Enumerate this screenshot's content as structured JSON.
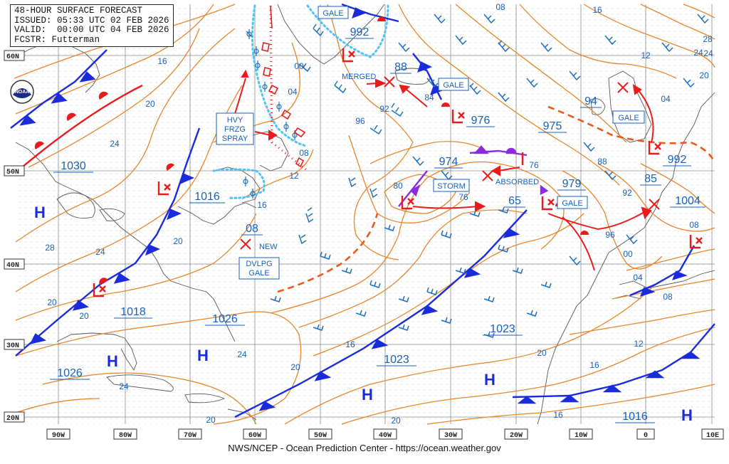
{
  "header": {
    "line1": "48-HOUR SURFACE FORECAST",
    "line2": "ISSUED: 05:33 UTC 02 FEB 2026",
    "line3": "VALID:  00:00 UTC 04 FEB 2026",
    "line4": "FCSTR: Futterman"
  },
  "footer": "NWS/NCEP - Ocean Prediction Center - https://ocean.weather.gov",
  "logo_text": "NOAA",
  "lat_labels": [
    "60N",
    "50N",
    "40N",
    "30N",
    "20N"
  ],
  "lon_labels": [
    "90W",
    "80W",
    "70W",
    "60W",
    "50W",
    "40W",
    "30W",
    "20W",
    "10W",
    "0",
    "10E"
  ],
  "highs": [
    {
      "label": "H",
      "pressure": "1030"
    },
    {
      "label": "H",
      "pressure": "1018"
    },
    {
      "label": "H",
      "pressure": "1026"
    },
    {
      "label": "H",
      "pressure": "1026"
    },
    {
      "label": "H",
      "pressure": "1023"
    },
    {
      "label": "H",
      "pressure": "1023"
    },
    {
      "label": "H",
      "pressure": "1016"
    }
  ],
  "lows": [
    "992",
    "88",
    "976",
    "975",
    "94",
    "974",
    "979",
    "1016",
    "992",
    "85",
    "1004",
    "65",
    "08"
  ],
  "boxes": {
    "gale1": "GALE",
    "gale2": "GALE",
    "gale3": "GALE",
    "gale4": "GALE",
    "storm": "STORM",
    "hvy1": "HVY",
    "hvy2": "FRZG",
    "hvy3": "SPRAY",
    "dvlpg1": "DVLPG",
    "dvlpg2": "GALE"
  },
  "annotations": {
    "merged": "MERGED",
    "absorbed": "ABSORBED",
    "new": "NEW"
  },
  "isobar_labels": [
    "16",
    "20",
    "24",
    "28",
    "24",
    "20",
    "20",
    "24",
    "20",
    "24",
    "20",
    "16",
    "00",
    "04",
    "08",
    "12",
    "16",
    "92",
    "96",
    "84",
    "80",
    "76",
    "76",
    "88",
    "92",
    "96",
    "00",
    "04",
    "08",
    "12",
    "16",
    "20",
    "16",
    "20",
    "24",
    "28",
    "20",
    "04",
    "08",
    "12",
    "16",
    "24",
    "20",
    "08"
  ],
  "colors": {
    "isobar": "#e8852a",
    "cold_front": "#1a2bdc",
    "warm_front": "#e81c1c",
    "occluded": "#8a2be2",
    "barb": "#1f6fb8",
    "ice": "#4fc3f7",
    "text_blue": "#1560bd",
    "grid": "#777777"
  }
}
